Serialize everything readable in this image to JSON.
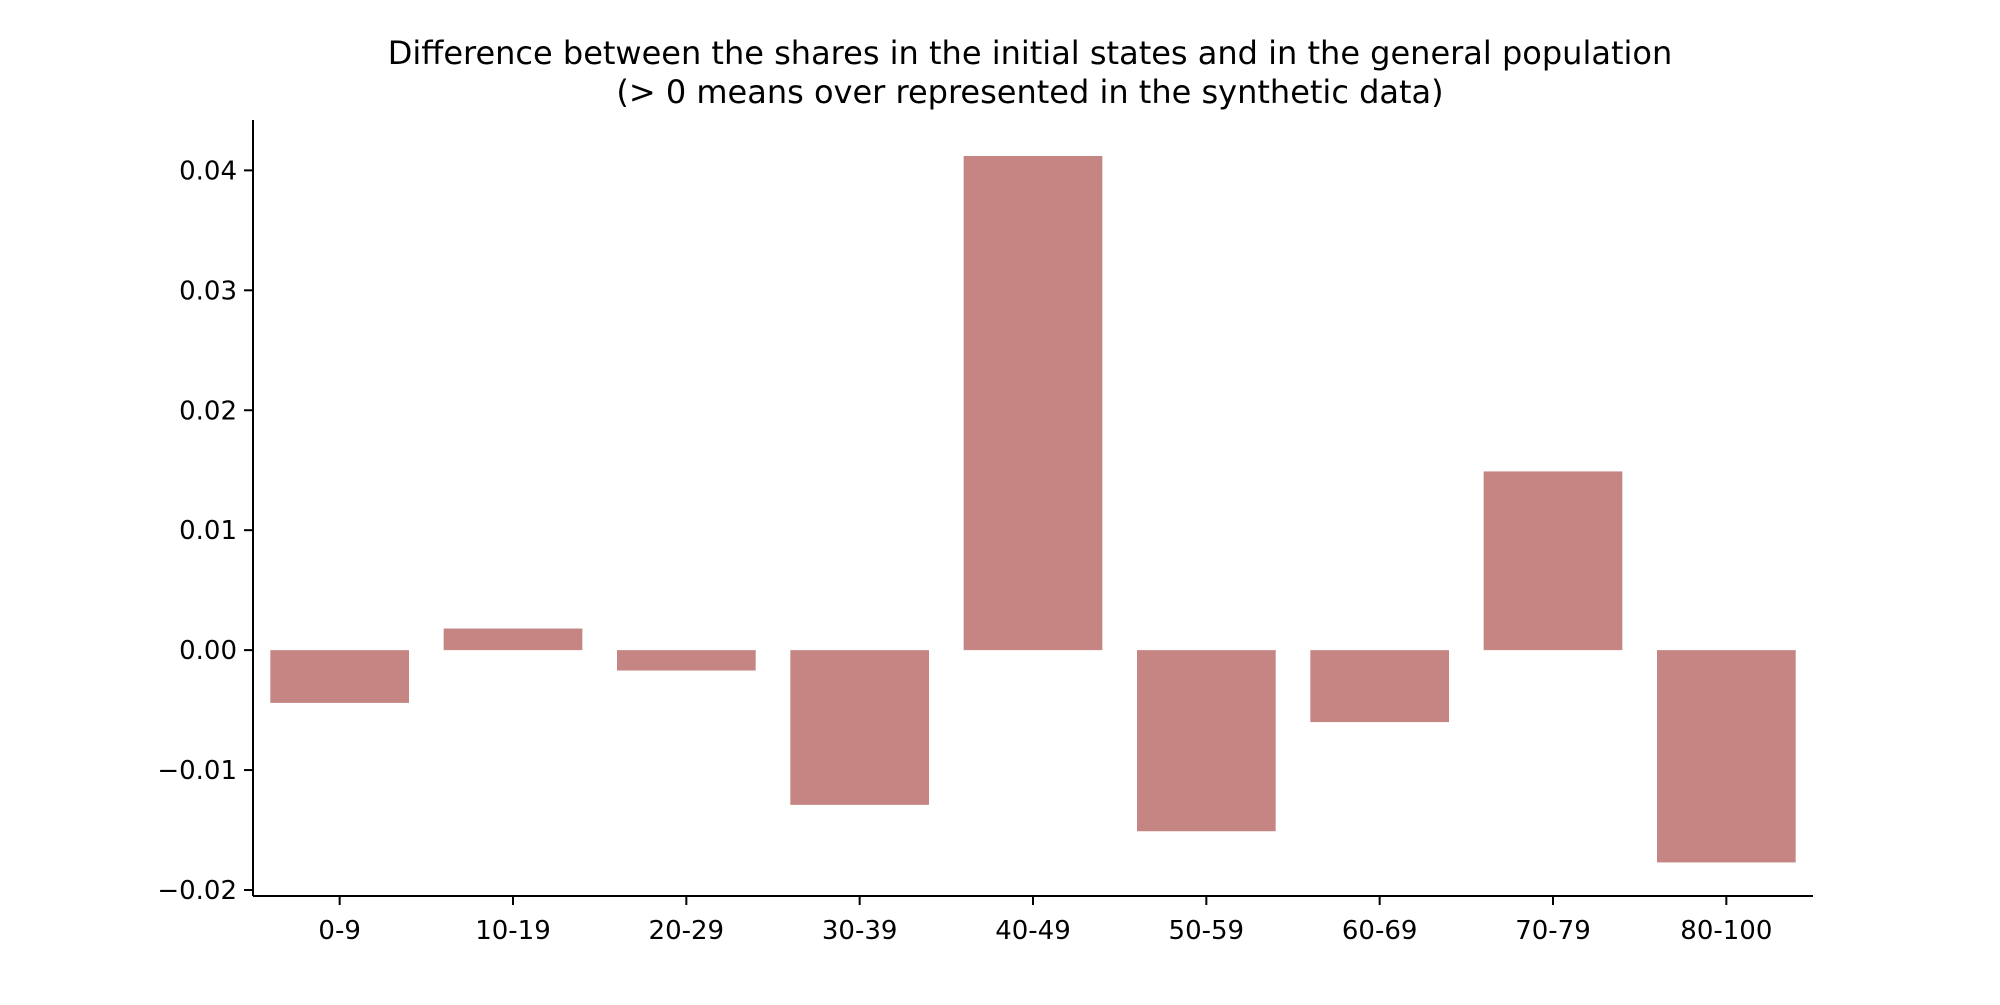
{
  "chart_data": {
    "type": "bar",
    "title": "Difference between the shares in the initial states and in the general population",
    "subtitle": "(> 0 means over represented in the synthetic data)",
    "xlabel": "",
    "ylabel": "",
    "categories": [
      "0-9",
      "10-19",
      "20-29",
      "30-39",
      "40-49",
      "50-59",
      "60-69",
      "70-79",
      "80-100"
    ],
    "values": [
      -0.0044,
      0.0018,
      -0.0017,
      -0.0129,
      0.0412,
      -0.0151,
      -0.006,
      0.0149,
      -0.0177
    ],
    "ylim": [
      -0.0205,
      0.0442
    ],
    "yticks": [
      -0.02,
      -0.01,
      0.0,
      0.01,
      0.02,
      0.03,
      0.04
    ],
    "ytick_labels": [
      "−0.02",
      "−0.01",
      "0.00",
      "0.01",
      "0.02",
      "0.03",
      "0.04"
    ],
    "bar_color": "#c48583",
    "grid": false,
    "legend": "none"
  }
}
